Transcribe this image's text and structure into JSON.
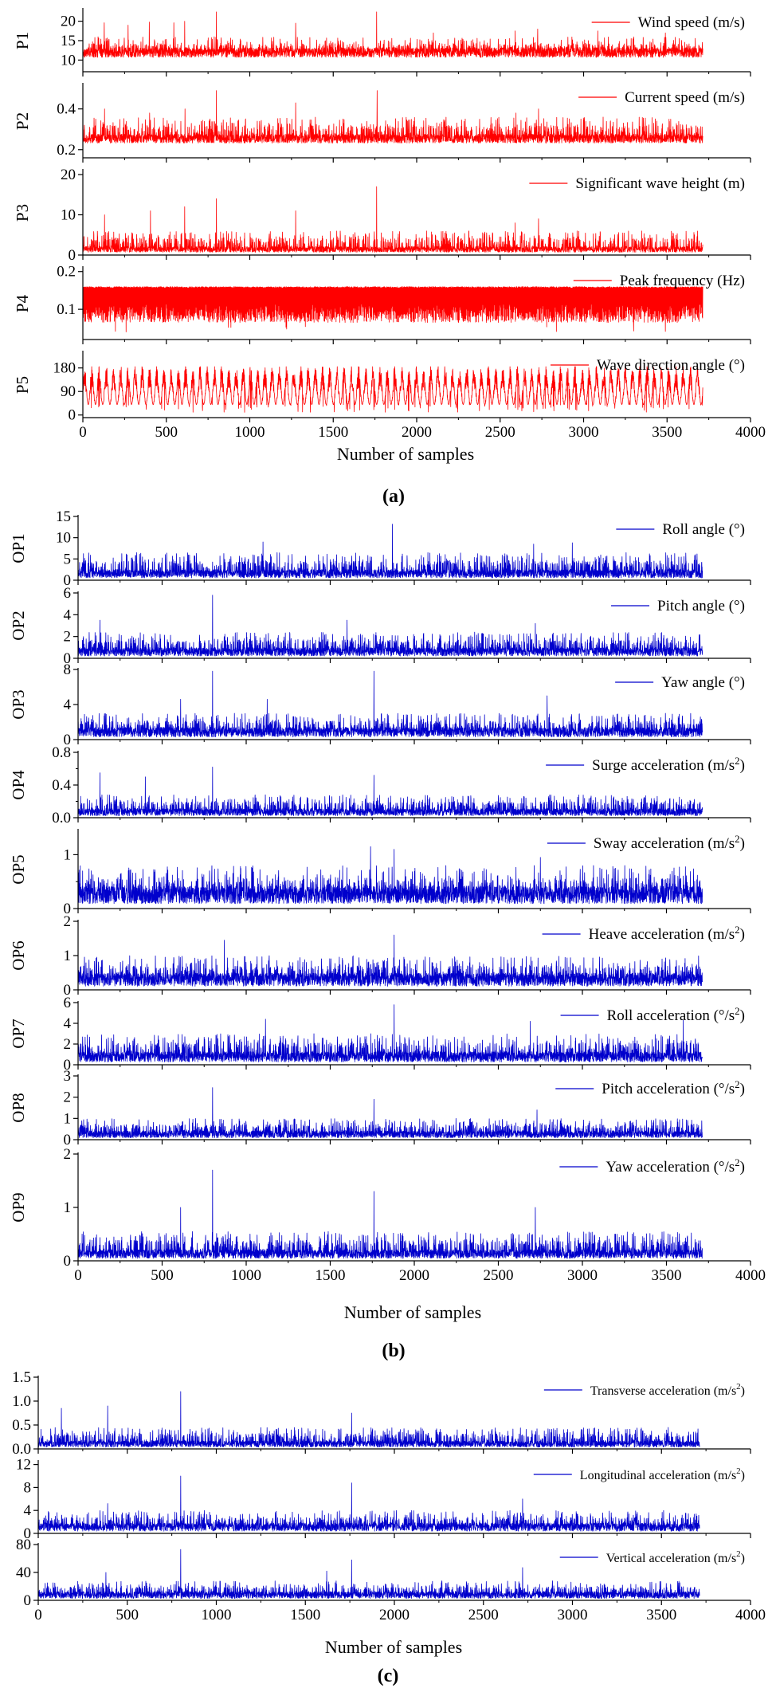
{
  "figure": {
    "panels": [
      {
        "label": "(a)",
        "xlabel": "Number of samples"
      },
      {
        "label": "(b)",
        "xlabel": "Number of samples"
      },
      {
        "label": "(c)",
        "xlabel": "Number of samples"
      }
    ]
  },
  "colors": {
    "panel_a": "#ff0000",
    "panel_b": "#0000cc",
    "panel_c": "#0000cc",
    "axis": "#000000"
  },
  "chart_data": [
    {
      "type": "line",
      "panel": "a",
      "ylabel": "P1",
      "legend": "Wind speed (m/s)",
      "legend_sup": "",
      "xlim": [
        0,
        4000
      ],
      "ylim": [
        7,
        23
      ],
      "yticks": [
        10,
        15,
        20
      ],
      "xticks": [
        0,
        500,
        1000,
        1500,
        2000,
        2500,
        3000,
        3500,
        4000
      ],
      "x_tick_labels": false,
      "series": [
        {
          "n_samples": 3715,
          "base": 10.0,
          "mean": 12.3,
          "typical_max": 16.0,
          "max": 22.5,
          "min": 10.0,
          "spikes": [
            {
              "x": 128,
              "y": 19.6
            },
            {
              "x": 271,
              "y": 19.0
            },
            {
              "x": 398,
              "y": 19.8
            },
            {
              "x": 545,
              "y": 19.6
            },
            {
              "x": 610,
              "y": 20.0
            },
            {
              "x": 800,
              "y": 22.4
            },
            {
              "x": 1275,
              "y": 19.5
            },
            {
              "x": 1760,
              "y": 22.4
            },
            {
              "x": 2100,
              "y": 17.0
            },
            {
              "x": 2590,
              "y": 17.5
            },
            {
              "x": 2725,
              "y": 18.0
            },
            {
              "x": 3085,
              "y": 17.5
            },
            {
              "x": 3490,
              "y": 17.0
            }
          ]
        }
      ]
    },
    {
      "type": "line",
      "panel": "a",
      "ylabel": "P2",
      "legend": "Current speed (m/s)",
      "legend_sup": "",
      "xlim": [
        0,
        4000
      ],
      "ylim": [
        0.16,
        0.52
      ],
      "yticks": [
        0.2,
        0.4
      ],
      "xticks": [
        0,
        500,
        1000,
        1500,
        2000,
        2500,
        3000,
        3500,
        4000
      ],
      "x_tick_labels": false,
      "series": [
        {
          "n_samples": 3715,
          "base": 0.22,
          "mean": 0.26,
          "typical_max": 0.36,
          "max": 0.49,
          "min": 0.2,
          "spikes": [
            {
              "x": 130,
              "y": 0.4
            },
            {
              "x": 400,
              "y": 0.38
            },
            {
              "x": 612,
              "y": 0.4
            },
            {
              "x": 800,
              "y": 0.49
            },
            {
              "x": 1275,
              "y": 0.43
            },
            {
              "x": 1763,
              "y": 0.49
            },
            {
              "x": 2595,
              "y": 0.38
            },
            {
              "x": 2730,
              "y": 0.4
            }
          ]
        }
      ]
    },
    {
      "type": "line",
      "panel": "a",
      "ylabel": "P3",
      "legend": "Significant wave height (m)",
      "legend_sup": "",
      "xlim": [
        0,
        4000
      ],
      "ylim": [
        0,
        21
      ],
      "yticks": [
        0,
        10,
        20
      ],
      "xticks": [
        0,
        500,
        1000,
        1500,
        2000,
        2500,
        3000,
        3500,
        4000
      ],
      "x_tick_labels": false,
      "series": [
        {
          "n_samples": 3715,
          "base": 0.3,
          "mean": 1.6,
          "typical_max": 6.0,
          "max": 17.0,
          "min": 0.3,
          "spikes": [
            {
              "x": 130,
              "y": 10.0
            },
            {
              "x": 405,
              "y": 11.0
            },
            {
              "x": 610,
              "y": 12.0
            },
            {
              "x": 800,
              "y": 14.0
            },
            {
              "x": 1275,
              "y": 11.0
            },
            {
              "x": 1760,
              "y": 17.0
            },
            {
              "x": 2590,
              "y": 8.0
            },
            {
              "x": 2730,
              "y": 9.0
            }
          ]
        }
      ]
    },
    {
      "type": "line",
      "panel": "a",
      "ylabel": "P4",
      "legend": "Peak frequency (Hz)",
      "legend_sup": "",
      "xlim": [
        0,
        4000
      ],
      "ylim": [
        0.02,
        0.21
      ],
      "yticks": [
        0.1,
        0.2
      ],
      "xticks": [
        0,
        500,
        1000,
        1500,
        2000,
        2500,
        3000,
        3500,
        4000
      ],
      "x_tick_labels": false,
      "series": [
        {
          "n_samples": 3715,
          "upper_band": 0.16,
          "lower_band": 0.065,
          "min": 0.04
        }
      ]
    },
    {
      "type": "line",
      "panel": "a",
      "ylabel": "P5",
      "legend": "Wave direction angle (°)",
      "legend_sup": "",
      "xlim": [
        0,
        4000
      ],
      "ylim": [
        -10,
        240
      ],
      "yticks": [
        0,
        90,
        180
      ],
      "xticks": [
        0,
        500,
        1000,
        1500,
        2000,
        2500,
        3000,
        3500,
        4000
      ],
      "x_tick_labels": true,
      "series": [
        {
          "n_samples": 3715,
          "low": 40,
          "high": 185,
          "min": 10,
          "cycles": 86
        }
      ]
    },
    {
      "type": "line",
      "panel": "b",
      "ylabel": "OP1",
      "legend": "Roll angle (°)",
      "legend_sup": "",
      "xlim": [
        0,
        4000
      ],
      "ylim": [
        0,
        15
      ],
      "yticks": [
        0,
        5,
        10,
        15
      ],
      "xticks": [
        0,
        500,
        1000,
        1500,
        2000,
        2500,
        3000,
        3500,
        4000
      ],
      "x_tick_labels": false,
      "series": [
        {
          "n_samples": 3715,
          "base": 0.0,
          "mean": 1.8,
          "typical_max": 6.5,
          "max": 13.2,
          "min": 0.0,
          "spikes": [
            {
              "x": 1870,
              "y": 13.2
            },
            {
              "x": 1100,
              "y": 9.0
            },
            {
              "x": 2940,
              "y": 8.8
            },
            {
              "x": 2710,
              "y": 8.5
            }
          ]
        }
      ]
    },
    {
      "type": "line",
      "panel": "b",
      "ylabel": "OP2",
      "legend": "Pitch angle (°)",
      "legend_sup": "",
      "xlim": [
        0,
        4000
      ],
      "ylim": [
        0,
        6
      ],
      "yticks": [
        0,
        2,
        4,
        6
      ],
      "xticks": [
        0,
        500,
        1000,
        1500,
        2000,
        2500,
        3000,
        3500,
        4000
      ],
      "x_tick_labels": false,
      "series": [
        {
          "n_samples": 3715,
          "base": 0.0,
          "mean": 0.7,
          "typical_max": 2.4,
          "max": 5.8,
          "min": 0.0,
          "spikes": [
            {
              "x": 800,
              "y": 5.8
            },
            {
              "x": 130,
              "y": 3.5
            },
            {
              "x": 1600,
              "y": 3.5
            },
            {
              "x": 2720,
              "y": 3.2
            }
          ]
        }
      ]
    },
    {
      "type": "line",
      "panel": "b",
      "ylabel": "OP3",
      "legend": "Yaw angle (°)",
      "legend_sup": "",
      "xlim": [
        0,
        4000
      ],
      "ylim": [
        0,
        8
      ],
      "yticks": [
        0,
        4,
        8
      ],
      "xticks": [
        0,
        500,
        1000,
        1500,
        2000,
        2500,
        3000,
        3500,
        4000
      ],
      "x_tick_labels": false,
      "series": [
        {
          "n_samples": 3715,
          "base": 0.0,
          "mean": 1.0,
          "typical_max": 3.0,
          "max": 7.8,
          "min": 0.0,
          "spikes": [
            {
              "x": 800,
              "y": 7.8
            },
            {
              "x": 1760,
              "y": 7.8
            },
            {
              "x": 2790,
              "y": 5.0
            },
            {
              "x": 610,
              "y": 4.6
            },
            {
              "x": 1125,
              "y": 4.6
            }
          ]
        }
      ]
    },
    {
      "type": "line",
      "panel": "b",
      "ylabel": "OP4",
      "legend": "Surge acceleration (m/s",
      "legend_sup": "2",
      "xlim": [
        0,
        4000
      ],
      "ylim": [
        0,
        0.8
      ],
      "yticks": [
        0.0,
        0.4,
        0.8
      ],
      "tick_labels": [
        "0.0",
        "0.4",
        "0.8"
      ],
      "minor_yticks": [
        0.2,
        0.6
      ],
      "xticks": [
        0,
        500,
        1000,
        1500,
        2000,
        2500,
        3000,
        3500,
        4000
      ],
      "x_tick_labels": false,
      "series": [
        {
          "n_samples": 3715,
          "base": 0.0,
          "mean": 0.08,
          "typical_max": 0.28,
          "max": 0.62,
          "min": 0.0,
          "spikes": [
            {
              "x": 800,
              "y": 0.62
            },
            {
              "x": 130,
              "y": 0.55
            },
            {
              "x": 400,
              "y": 0.5
            },
            {
              "x": 1760,
              "y": 0.52
            }
          ]
        }
      ]
    },
    {
      "type": "line",
      "panel": "b",
      "ylabel": "OP5",
      "legend": "Sway acceleration (m/s",
      "legend_sup": "2",
      "xlim": [
        0,
        4000
      ],
      "ylim": [
        0,
        1.45
      ],
      "yticks": [
        0,
        1
      ],
      "minor_yticks": [
        0.5
      ],
      "xticks": [
        0,
        500,
        1000,
        1500,
        2000,
        2500,
        3000,
        3500,
        4000
      ],
      "x_tick_labels": false,
      "series": [
        {
          "n_samples": 3715,
          "base": 0.0,
          "mean": 0.3,
          "typical_max": 0.8,
          "max": 1.15,
          "min": 0.0,
          "spikes": [
            {
              "x": 1740,
              "y": 1.15
            },
            {
              "x": 1880,
              "y": 1.1
            },
            {
              "x": 2750,
              "y": 0.95
            }
          ]
        }
      ]
    },
    {
      "type": "line",
      "panel": "b",
      "ylabel": "OP6",
      "legend": "Heave acceleration (m/s",
      "legend_sup": "2",
      "xlim": [
        0,
        4000
      ],
      "ylim": [
        0,
        2
      ],
      "yticks": [
        0,
        1,
        2
      ],
      "xticks": [
        0,
        500,
        1000,
        1500,
        2000,
        2500,
        3000,
        3500,
        4000
      ],
      "x_tick_labels": false,
      "series": [
        {
          "n_samples": 3715,
          "base": 0.0,
          "mean": 0.35,
          "typical_max": 1.0,
          "max": 1.6,
          "min": 0.0,
          "spikes": [
            {
              "x": 1880,
              "y": 1.6
            },
            {
              "x": 870,
              "y": 1.45
            }
          ]
        }
      ]
    },
    {
      "type": "line",
      "panel": "b",
      "ylabel": "OP7",
      "legend": "Roll acceleration (°/s",
      "legend_sup": "2",
      "xlim": [
        0,
        4000
      ],
      "ylim": [
        0,
        6
      ],
      "yticks": [
        0,
        2,
        4,
        6
      ],
      "xticks": [
        0,
        500,
        1000,
        1500,
        2000,
        2500,
        3000,
        3500,
        4000
      ],
      "x_tick_labels": false,
      "series": [
        {
          "n_samples": 3715,
          "base": 0.0,
          "mean": 0.9,
          "typical_max": 3.0,
          "max": 5.8,
          "min": 0.0,
          "spikes": [
            {
              "x": 1880,
              "y": 5.8
            },
            {
              "x": 1115,
              "y": 4.4
            },
            {
              "x": 3600,
              "y": 4.3
            },
            {
              "x": 2690,
              "y": 4.2
            }
          ]
        }
      ]
    },
    {
      "type": "line",
      "panel": "b",
      "ylabel": "OP8",
      "legend": "Pitch acceleration (°/s",
      "legend_sup": "2",
      "xlim": [
        0,
        4000
      ],
      "ylim": [
        0,
        3
      ],
      "yticks": [
        0,
        1,
        2,
        3
      ],
      "xticks": [
        0,
        500,
        1000,
        1500,
        2000,
        2500,
        3000,
        3500,
        4000
      ],
      "x_tick_labels": false,
      "series": [
        {
          "n_samples": 3715,
          "base": 0.0,
          "mean": 0.3,
          "typical_max": 1.0,
          "max": 2.45,
          "min": 0.0,
          "spikes": [
            {
              "x": 800,
              "y": 2.45
            },
            {
              "x": 1760,
              "y": 1.9
            },
            {
              "x": 2730,
              "y": 1.4
            }
          ]
        }
      ]
    },
    {
      "type": "line",
      "panel": "b",
      "ylabel": "OP9",
      "legend": "Yaw acceleration (°/s",
      "legend_sup": "2",
      "xlim": [
        0,
        4000
      ],
      "ylim": [
        0,
        2
      ],
      "yticks": [
        0,
        1,
        2
      ],
      "xticks": [
        0,
        500,
        1000,
        1500,
        2000,
        2500,
        3000,
        3500,
        4000
      ],
      "x_tick_labels": true,
      "series": [
        {
          "n_samples": 3715,
          "base": 0.0,
          "mean": 0.15,
          "typical_max": 0.55,
          "max": 1.7,
          "min": 0.0,
          "spikes": [
            {
              "x": 800,
              "y": 1.7
            },
            {
              "x": 1760,
              "y": 1.3
            },
            {
              "x": 2720,
              "y": 1.0
            },
            {
              "x": 610,
              "y": 1.0
            }
          ]
        }
      ]
    },
    {
      "type": "line",
      "panel": "c",
      "ylabel": "",
      "legend": "Transverse acceleration (m/s",
      "legend_sup": "2",
      "xlim": [
        0,
        4000
      ],
      "ylim": [
        0,
        1.5
      ],
      "yticks": [
        0.0,
        0.5,
        1.0,
        1.5
      ],
      "tick_labels": [
        "0.0",
        "0.5",
        "1.0",
        "1.5"
      ],
      "xticks": [
        0,
        500,
        1000,
        1500,
        2000,
        2500,
        3000,
        3500,
        4000
      ],
      "x_tick_labels": false,
      "series": [
        {
          "n_samples": 3715,
          "base": 0.0,
          "mean": 0.12,
          "typical_max": 0.45,
          "max": 1.2,
          "min": 0.0,
          "spikes": [
            {
              "x": 800,
              "y": 1.2
            },
            {
              "x": 130,
              "y": 0.85
            },
            {
              "x": 390,
              "y": 0.9
            },
            {
              "x": 1760,
              "y": 0.75
            }
          ]
        }
      ]
    },
    {
      "type": "line",
      "panel": "c",
      "ylabel": "",
      "legend": "Longitudinal acceleration (m/s",
      "legend_sup": "2",
      "xlim": [
        0,
        4000
      ],
      "ylim": [
        0,
        12.5
      ],
      "yticks": [
        0,
        4,
        8,
        12
      ],
      "xticks": [
        0,
        500,
        1000,
        1500,
        2000,
        2500,
        3000,
        3500,
        4000
      ],
      "x_tick_labels": false,
      "series": [
        {
          "n_samples": 3715,
          "base": 0.0,
          "mean": 1.3,
          "typical_max": 4.0,
          "max": 10.0,
          "min": 0.0,
          "spikes": [
            {
              "x": 800,
              "y": 10.0
            },
            {
              "x": 1760,
              "y": 8.8
            },
            {
              "x": 2720,
              "y": 6.0
            },
            {
              "x": 390,
              "y": 5.2
            }
          ]
        }
      ]
    },
    {
      "type": "line",
      "panel": "c",
      "ylabel": "",
      "legend": "Vertical acceleration (m/s",
      "legend_sup": "2",
      "xlim": [
        0,
        4000
      ],
      "ylim": [
        0,
        80
      ],
      "yticks": [
        0,
        40,
        80
      ],
      "xticks": [
        0,
        500,
        1000,
        1500,
        2000,
        2500,
        3000,
        3500,
        4000
      ],
      "x_tick_labels": true,
      "series": [
        {
          "n_samples": 3715,
          "base": 0.0,
          "mean": 9.0,
          "typical_max": 28.0,
          "max": 73.0,
          "min": 0.0,
          "spikes": [
            {
              "x": 800,
              "y": 73.0
            },
            {
              "x": 1760,
              "y": 58.0
            },
            {
              "x": 2720,
              "y": 47.0
            },
            {
              "x": 1620,
              "y": 42.0
            },
            {
              "x": 380,
              "y": 40.0
            }
          ]
        }
      ]
    }
  ]
}
